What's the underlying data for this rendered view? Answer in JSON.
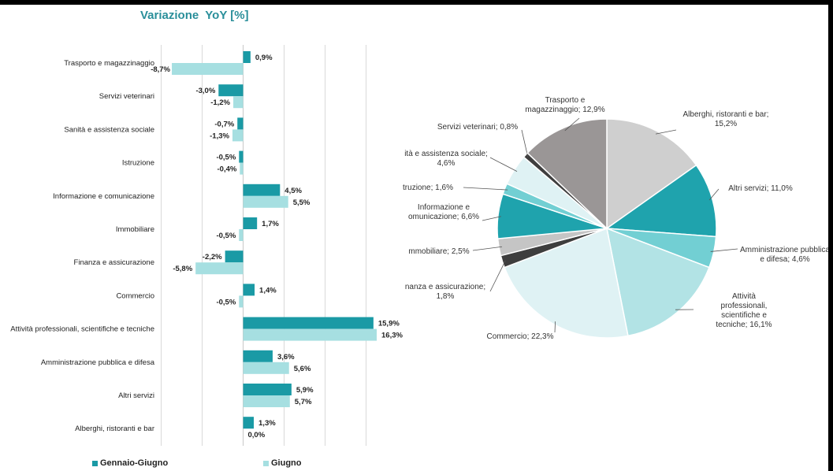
{
  "chart_data": [
    {
      "type": "bar",
      "orientation": "horizontal",
      "title": "Variazione  YoY [%]",
      "categories": [
        "Trasporto e magazzinaggio",
        "Servizi veterinari",
        "Sanità e assistenza sociale",
        "Istruzione",
        "Informazione e comunicazione",
        "Immobiliare",
        "Finanza e assicurazione",
        "Commercio",
        "Attività professionali, scientifiche e tecniche",
        "Amministrazione pubblica e difesa",
        "Altri servizi",
        "Alberghi, ristoranti e bar"
      ],
      "series": [
        {
          "name": "Gennaio-Giugno",
          "color": "#1a9aa5",
          "values": [
            0.9,
            -3.0,
            -0.7,
            -0.5,
            4.5,
            1.7,
            -2.2,
            1.4,
            15.9,
            3.6,
            5.9,
            1.3
          ],
          "labels": [
            "0,9%",
            "-3,0%",
            "-0,7%",
            "-0,5%",
            "4,5%",
            "1,7%",
            "-2,2%",
            "1,4%",
            "15,9%",
            "3,6%",
            "5,9%",
            "1,3%"
          ]
        },
        {
          "name": "Giugno",
          "color": "#a6dfe1",
          "values": [
            -8.7,
            -1.2,
            -1.3,
            -0.4,
            5.5,
            -0.5,
            -5.8,
            -0.5,
            16.3,
            5.6,
            5.7,
            0.0
          ],
          "labels": [
            "-8,7%",
            "-1,2%",
            "-1,3%",
            "-0,4%",
            "5,5%",
            "-0,5%",
            "-5,8%",
            "-0,5%",
            "16,3%",
            "5,6%",
            "5,7%",
            "0,0%"
          ]
        }
      ],
      "xlim": [
        -10,
        17
      ],
      "grid": true,
      "legend": "bottom"
    },
    {
      "type": "pie",
      "slices": [
        {
          "label": [
            "Alberghi, ristoranti e bar;",
            "15,2%"
          ],
          "value": 15.2,
          "color": "#cfcfcf"
        },
        {
          "label": [
            "Altri servizi; 11,0%"
          ],
          "value": 11.0,
          "color": "#1fa3ad"
        },
        {
          "label": [
            "Amministrazione pubblica",
            "e difesa; 4,6%"
          ],
          "value": 4.6,
          "color": "#72cfd3"
        },
        {
          "label": [
            "Attività",
            "professionali,",
            "scientifiche e",
            "tecniche; 16,1%"
          ],
          "value": 16.1,
          "color": "#b2e3e5"
        },
        {
          "label": [
            "Commercio; 22,3%"
          ],
          "value": 22.3,
          "color": "#dff2f4"
        },
        {
          "label": [
            "nanza e assicurazione;",
            "1,8%"
          ],
          "value": 1.8,
          "color": "#3e3e3e"
        },
        {
          "label": [
            "mmobiliare; 2,5%"
          ],
          "value": 2.5,
          "color": "#c5c5c5"
        },
        {
          "label": [
            "Informazione e",
            "omunicazione; 6,6%"
          ],
          "value": 6.6,
          "color": "#1fa3ad"
        },
        {
          "label": [
            "truzione; 1,6%"
          ],
          "value": 1.6,
          "color": "#72cfd3"
        },
        {
          "label": [
            "ità e assistenza sociale;",
            "4,6%"
          ],
          "value": 4.6,
          "color": "#dff2f4"
        },
        {
          "label": [
            "Servizi veterinari; 0,8%"
          ],
          "value": 0.8,
          "color": "#3e3e3e"
        },
        {
          "label": [
            "Trasporto e",
            "magazzinaggio; 12,9%"
          ],
          "value": 12.9,
          "color": "#9a9696"
        }
      ]
    }
  ],
  "legend_items": [
    {
      "label": "Gennaio-Giugno",
      "color": "#1a9aa5"
    },
    {
      "label": "Giugno",
      "color": "#a6dfe1"
    }
  ]
}
